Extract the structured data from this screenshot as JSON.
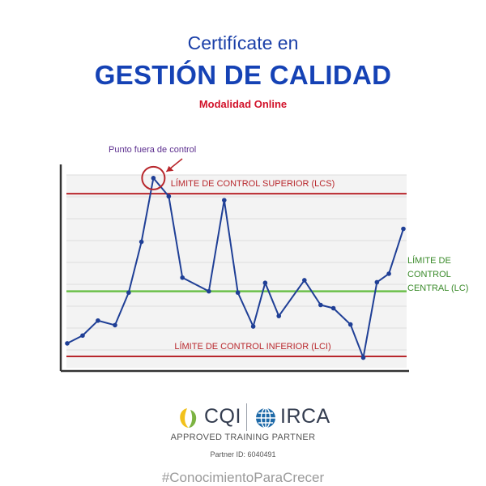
{
  "header": {
    "title_line1": "Certifícate en",
    "title_line2": "GESTIÓN DE CALIDAD",
    "subtitle": "Modalidad Online"
  },
  "chart_data": {
    "type": "line",
    "title": "",
    "xlabel": "",
    "ylabel": "",
    "grid": true,
    "series": [
      {
        "name": "",
        "color": "#1f3f96",
        "values": [
          3.0,
          4.2,
          6.5,
          5.8,
          10.8,
          18.6,
          28.4,
          25.6,
          13.1,
          11.0,
          25.0,
          10.8,
          5.6,
          12.3,
          7.2,
          12.7,
          8.9,
          8.4,
          5.9,
          0.8,
          12.4,
          13.7,
          20.6
        ],
        "x_positions": [
          0.0,
          0.9,
          1.8,
          2.8,
          3.6,
          4.35,
          5.05,
          5.95,
          6.75,
          8.3,
          9.2,
          10.0,
          10.9,
          11.6,
          12.4,
          13.9,
          14.85,
          15.6,
          16.6,
          17.35,
          18.15,
          18.85,
          19.7
        ]
      }
    ],
    "x_range": [
      0,
      19.7
    ],
    "ylim": [
      0,
      30
    ],
    "control_limits": {
      "upper": {
        "label": "LÍMITE DE CONTROL SUPERIOR (LCS)",
        "value": 26.0,
        "color": "#b8272c"
      },
      "central": {
        "label_lines": [
          "LÍMITE DE",
          "CONTROL",
          "CENTRAL (LC)"
        ],
        "value": 11.0,
        "color": "#6cc04a"
      },
      "lower": {
        "label": "LÍMITE DE CONTROL INFERIOR (LCI)",
        "value": 1.0,
        "color": "#b8272c"
      }
    },
    "annotation": {
      "text": "Punto fuera de control",
      "point_index": 6,
      "color": "#5b2d8e"
    }
  },
  "logos": {
    "cqi": "CQI",
    "irca": "IRCA",
    "approved": "APPROVED TRAINING PARTNER",
    "partner_id": "Partner ID: 6040491"
  },
  "hashtag": "#ConocimientoParaCrecer"
}
